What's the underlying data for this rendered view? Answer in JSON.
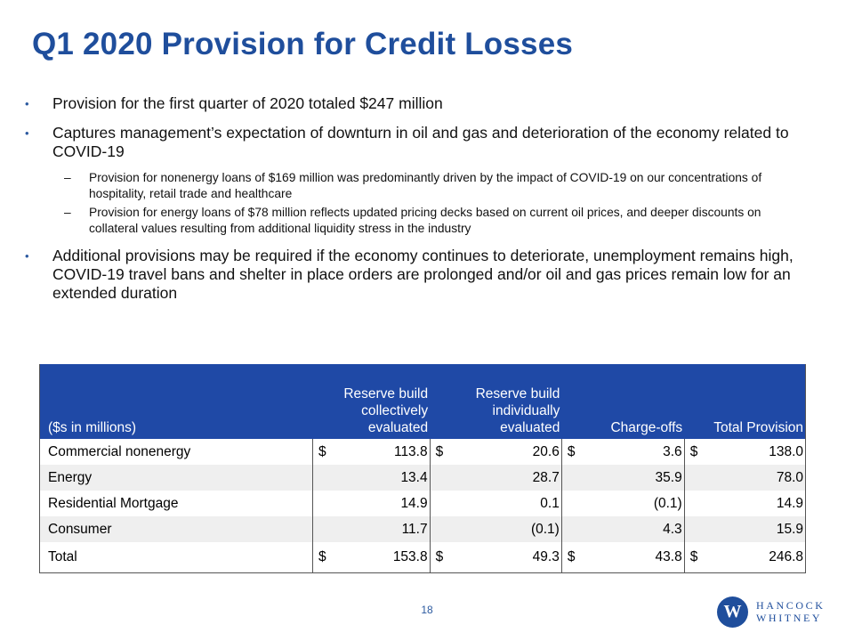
{
  "title": "Q1 2020 Provision for Credit Losses",
  "bullets": [
    {
      "text": "Provision for the first quarter of 2020 totaled $247 million"
    },
    {
      "text": "Captures management’s expectation of downturn in oil and gas and deterioration of the economy related to COVID-19",
      "sub": [
        "Provision for nonenergy loans of $169 million was predominantly driven by the impact of COVID-19 on our concentrations of hospitality, retail trade and healthcare",
        "Provision for energy loans of $78 million reflects updated pricing decks based on current oil prices, and deeper discounts on collateral values resulting from additional liquidity stress in the industry"
      ]
    },
    {
      "text": "Additional provisions may be required if the economy continues to deteriorate, unemployment remains high, COVID-19 travel bans and shelter in place orders are prolonged and/or oil and gas prices remain low for an extended duration"
    }
  ],
  "table": {
    "headers": [
      "($s in millions)",
      "Reserve build collectively evaluated",
      "Reserve build individually evaluated",
      "Charge-offs",
      "Total Provision"
    ],
    "rows": [
      {
        "label": "Commercial nonenergy",
        "cells": [
          [
            "$",
            "113.8"
          ],
          [
            "$",
            "20.6"
          ],
          [
            "$",
            "3.6"
          ],
          [
            "$",
            "138.0"
          ]
        ]
      },
      {
        "label": "Energy",
        "cells": [
          [
            "",
            "13.4"
          ],
          [
            "",
            "28.7"
          ],
          [
            "",
            "35.9"
          ],
          [
            "",
            "78.0"
          ]
        ]
      },
      {
        "label": "Residential Mortgage",
        "cells": [
          [
            "",
            "14.9"
          ],
          [
            "",
            "0.1"
          ],
          [
            "",
            "(0.1)"
          ],
          [
            "",
            "14.9"
          ]
        ]
      },
      {
        "label": "Consumer",
        "cells": [
          [
            "",
            "11.7"
          ],
          [
            "",
            "(0.1)"
          ],
          [
            "",
            "4.3"
          ],
          [
            "",
            "15.9"
          ]
        ]
      },
      {
        "label": "Total",
        "cells": [
          [
            "$",
            "153.8"
          ],
          [
            "$",
            "49.3"
          ],
          [
            "$",
            "43.8"
          ],
          [
            "$",
            "246.8"
          ]
        ]
      }
    ]
  },
  "page_number": "18",
  "logo": {
    "letter": "W",
    "line1": "HANCOCK",
    "line2": "WHITNEY"
  },
  "colors": {
    "title": "#1f4e9c",
    "header_bg": "#1f49a6",
    "alt_row": "#efefef"
  }
}
